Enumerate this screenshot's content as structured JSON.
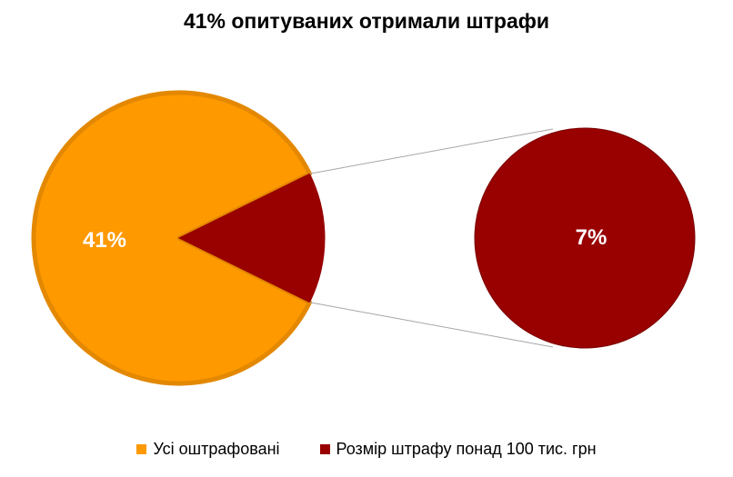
{
  "chart_data": {
    "type": "pie",
    "subtype": "pie-of-pie",
    "title": "41% опитуваних отримали штрафи",
    "main_pie": {
      "slices": [
        {
          "id": "all_fined",
          "label": "Усі оштрафовані",
          "value": 41,
          "data_label": "41%",
          "color": "#ff9900",
          "border_color": "#e38800"
        },
        {
          "id": "over_100k",
          "label": "Розмір штрафу понад 100 тис. грн",
          "value": 7,
          "data_label": "",
          "color": "#990000",
          "border_color": "#990000"
        }
      ]
    },
    "secondary_pie": {
      "slices": [
        {
          "id": "over_100k",
          "label": "Розмір штрафу понад 100 тис. грн",
          "value": 7,
          "data_label": "7%",
          "color": "#990000"
        }
      ]
    },
    "legend": {
      "position": "bottom",
      "entries": [
        {
          "label": "Усі оштрафовані",
          "color": "#ff9900"
        },
        {
          "label": "Розмір штрафу понад 100 тис. грн",
          "color": "#990000"
        }
      ]
    },
    "connector_color": "#a6a6a6"
  }
}
